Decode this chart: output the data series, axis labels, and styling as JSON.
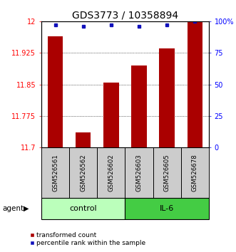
{
  "title": "GDS3773 / 10358894",
  "samples": [
    "GSM526561",
    "GSM526562",
    "GSM526602",
    "GSM526603",
    "GSM526605",
    "GSM526678"
  ],
  "red_values": [
    11.965,
    11.735,
    11.855,
    11.895,
    11.935,
    12.0
  ],
  "blue_actual": [
    97,
    96,
    97,
    96,
    97,
    100
  ],
  "ylim_left": [
    11.7,
    12.0
  ],
  "ylim_right": [
    0,
    100
  ],
  "yticks_left": [
    11.7,
    11.775,
    11.85,
    11.925,
    12.0
  ],
  "yticks_right": [
    0,
    25,
    50,
    75,
    100
  ],
  "ytick_labels_left": [
    "11.7",
    "11.775",
    "11.85",
    "11.925",
    "12"
  ],
  "ytick_labels_right": [
    "0",
    "25",
    "50",
    "75",
    "100%"
  ],
  "bar_color": "#aa0000",
  "dot_color": "#1111bb",
  "control_color": "#bbffbb",
  "il6_color": "#44cc44",
  "sample_box_color": "#cccccc",
  "tick_fontsize": 7,
  "title_fontsize": 10,
  "bar_width": 0.55,
  "agent_label": "agent",
  "legend_items": [
    "transformed count",
    "percentile rank within the sample"
  ]
}
